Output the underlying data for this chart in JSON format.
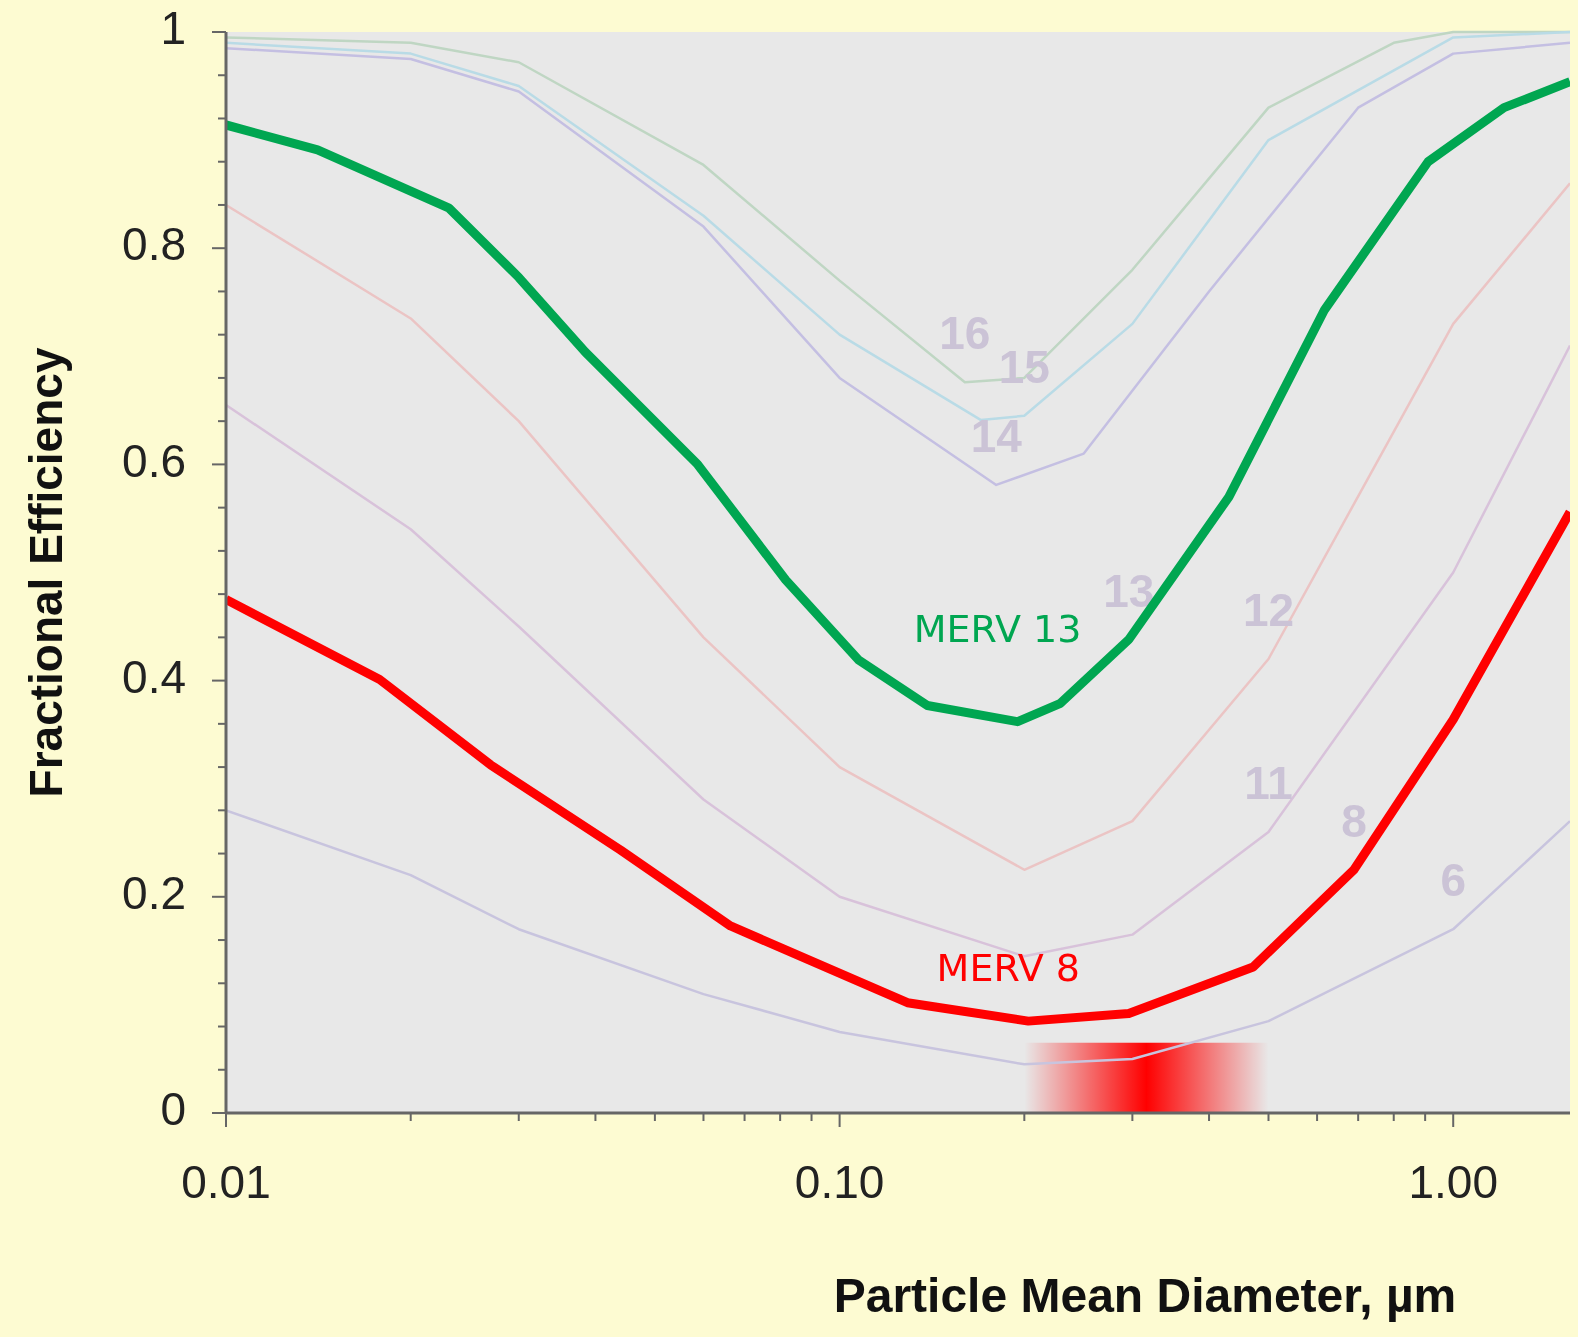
{
  "chart_data": {
    "type": "line",
    "xlabel": "Particle Mean Diameter, µm",
    "ylabel": "Fractional Efficiency",
    "log": "x",
    "grid": false,
    "legend": false,
    "marker": "none",
    "line_style": "solid",
    "xlim": [
      0.01,
      1.55
    ],
    "ylim": [
      0,
      1
    ],
    "xticks": [
      {
        "value": 0.01,
        "label": "0.01"
      },
      {
        "value": 0.02,
        "label": null
      },
      {
        "value": 0.03,
        "label": null
      },
      {
        "value": 0.04,
        "label": null
      },
      {
        "value": 0.05,
        "label": null
      },
      {
        "value": 0.06,
        "label": null
      },
      {
        "value": 0.07,
        "label": null
      },
      {
        "value": 0.08,
        "label": null
      },
      {
        "value": 0.09,
        "label": null
      },
      {
        "value": 0.1,
        "label": "0.10"
      },
      {
        "value": 0.2,
        "label": null
      },
      {
        "value": 0.3,
        "label": null
      },
      {
        "value": 0.4,
        "label": null
      },
      {
        "value": 0.5,
        "label": null
      },
      {
        "value": 0.6,
        "label": null
      },
      {
        "value": 0.7,
        "label": null
      },
      {
        "value": 0.8,
        "label": null
      },
      {
        "value": 0.9,
        "label": null
      },
      {
        "value": 1,
        "label": "1.00"
      }
    ],
    "yticks": [
      0,
      {
        "value": 0.04,
        "label": null
      },
      {
        "value": 0.08,
        "label": null
      },
      {
        "value": 0.12,
        "label": null
      },
      {
        "value": 0.16,
        "label": null
      },
      0.2,
      {
        "value": 0.24,
        "label": null
      },
      {
        "value": 0.28,
        "label": null
      },
      {
        "value": 0.32,
        "label": null
      },
      {
        "value": 0.36,
        "label": null
      },
      0.4,
      {
        "value": 0.44,
        "label": null
      },
      {
        "value": 0.48,
        "label": null
      },
      {
        "value": 0.52,
        "label": null
      },
      {
        "value": 0.56,
        "label": null
      },
      0.6,
      {
        "value": 0.64,
        "label": null
      },
      {
        "value": 0.68,
        "label": null
      },
      {
        "value": 0.72,
        "label": null
      },
      {
        "value": 0.76,
        "label": null
      },
      0.8,
      {
        "value": 0.84,
        "label": null
      },
      {
        "value": 0.88,
        "label": null
      },
      {
        "value": 0.92,
        "label": null
      },
      {
        "value": 0.96,
        "label": null
      },
      1
    ],
    "bands": [
      {
        "axis": "x",
        "from": 0.2,
        "to": 0.5,
        "color": "#ff0000"
      }
    ],
    "series": [
      {
        "color": "#bfd6c3",
        "x": [
          0.01,
          0.02,
          0.03,
          0.06,
          0.1,
          0.16,
          0.2,
          0.3,
          0.5,
          0.8,
          1,
          1.55
        ],
        "values": [
          0.995,
          0.99,
          0.972,
          0.877,
          0.77,
          0.676,
          0.68,
          0.78,
          0.93,
          0.99,
          1,
          1
        ]
      },
      {
        "color": "#b9dbe6",
        "x": [
          0.01,
          0.02,
          0.03,
          0.06,
          0.1,
          0.17,
          0.2,
          0.3,
          0.5,
          1,
          1.55
        ],
        "values": [
          0.99,
          0.98,
          0.95,
          0.83,
          0.72,
          0.641,
          0.645,
          0.73,
          0.9,
          0.995,
          1
        ]
      },
      {
        "color": "#c4bfe2",
        "x": [
          0.01,
          0.02,
          0.03,
          0.06,
          0.1,
          0.18,
          0.25,
          0.4,
          0.7,
          1,
          1.55
        ],
        "values": [
          0.985,
          0.975,
          0.945,
          0.82,
          0.68,
          0.581,
          0.61,
          0.76,
          0.93,
          0.98,
          0.99
        ]
      },
      {
        "color": "#ebc4c4",
        "x": [
          0.01,
          0.02,
          0.03,
          0.06,
          0.1,
          0.2,
          0.3,
          0.5,
          1,
          1.55
        ],
        "values": [
          0.84,
          0.735,
          0.64,
          0.44,
          0.32,
          0.225,
          0.27,
          0.42,
          0.73,
          0.86
        ]
      },
      {
        "color": "#d8c2da",
        "x": [
          0.01,
          0.02,
          0.03,
          0.06,
          0.1,
          0.2,
          0.3,
          0.5,
          1,
          1.55
        ],
        "values": [
          0.655,
          0.54,
          0.45,
          0.29,
          0.2,
          0.145,
          0.165,
          0.26,
          0.5,
          0.71
        ]
      },
      {
        "color": "#c8c4de",
        "x": [
          0.01,
          0.02,
          0.03,
          0.06,
          0.1,
          0.2,
          0.3,
          0.5,
          1,
          1.55
        ],
        "values": [
          0.28,
          0.22,
          0.17,
          0.11,
          0.075,
          0.045,
          0.05,
          0.085,
          0.17,
          0.27
        ]
      },
      {
        "name": "MERV 13",
        "color": "#00a651",
        "x": [
          0.01,
          0.0141,
          0.0231,
          0.03,
          0.0385,
          0.0587,
          0.0817,
          0.1074,
          0.139,
          0.195,
          0.229,
          0.296,
          0.431,
          0.617,
          0.91,
          1.21,
          1.55
        ],
        "values": [
          0.914,
          0.891,
          0.837,
          0.773,
          0.704,
          0.6,
          0.493,
          0.419,
          0.377,
          0.362,
          0.379,
          0.438,
          0.57,
          0.743,
          0.88,
          0.93,
          0.954
        ]
      },
      {
        "name": "MERV 8",
        "color": "#ff0000",
        "x": [
          0.01,
          0.0178,
          0.027,
          0.044,
          0.0664,
          0.129,
          0.203,
          0.296,
          0.472,
          0.689,
          1,
          1.55
        ],
        "values": [
          0.475,
          0.401,
          0.322,
          0.243,
          0.173,
          0.102,
          0.085,
          0.092,
          0.135,
          0.225,
          0.364,
          0.556
        ]
      }
    ],
    "annotations": [
      {
        "text": "16",
        "x": 0.16,
        "y": 0.676
      },
      {
        "text": "15",
        "x": 0.2,
        "y": 0.645
      },
      {
        "text": "14",
        "x": 0.18,
        "y": 0.581
      },
      {
        "text": "13",
        "x": 0.296,
        "y": 0.438
      },
      {
        "text": "12",
        "x": 0.5,
        "y": 0.42
      },
      {
        "text": "11",
        "x": 0.5,
        "y": 0.26
      },
      {
        "text": "8",
        "x": 0.689,
        "y": 0.225
      },
      {
        "text": "6",
        "x": 1,
        "y": 0.17
      }
    ]
  }
}
